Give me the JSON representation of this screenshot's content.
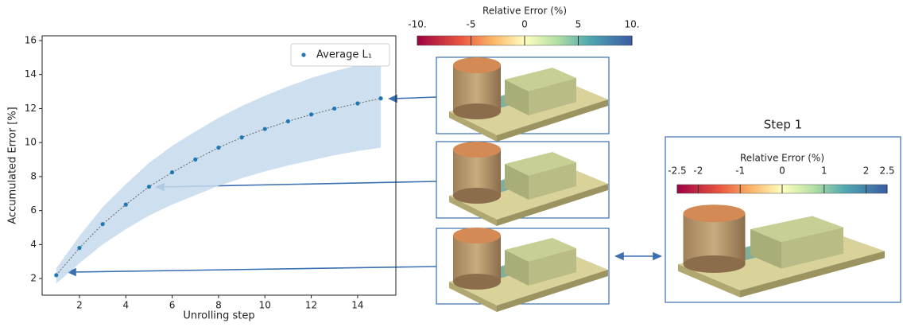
{
  "chart_data": {
    "type": "line",
    "x": [
      1,
      2,
      3,
      4,
      5,
      6,
      7,
      8,
      9,
      10,
      11,
      12,
      13,
      14,
      15
    ],
    "series": [
      {
        "name": "Average L₁",
        "color": "#1f77b4",
        "values": [
          2.2,
          3.8,
          5.2,
          6.35,
          7.4,
          8.25,
          9.0,
          9.7,
          10.3,
          10.8,
          11.25,
          11.65,
          12.0,
          12.3,
          12.6
        ]
      }
    ],
    "band": {
      "color": "#c6dbec",
      "lower": [
        1.7,
        2.9,
        4.0,
        4.9,
        5.7,
        6.35,
        6.9,
        7.45,
        7.9,
        8.3,
        8.65,
        8.95,
        9.25,
        9.5,
        9.7
      ],
      "upper": [
        2.6,
        4.5,
        6.2,
        7.55,
        8.8,
        9.8,
        10.65,
        11.45,
        12.15,
        12.75,
        13.3,
        13.8,
        14.2,
        14.55,
        14.9
      ]
    },
    "xlabel": "Unrolling step",
    "ylabel": "Accumulated Error [%]",
    "xlim": [
      0.39,
      15.65
    ],
    "ylim": [
      1.02,
      16.28
    ],
    "xticks": [
      2,
      4,
      6,
      8,
      10,
      12,
      14
    ],
    "yticks": [
      2,
      4,
      6,
      8,
      10,
      12,
      14,
      16
    ],
    "legend": "upper right"
  },
  "colorbars": [
    {
      "label": "Relative Error (%)",
      "lim": [
        -10,
        10
      ],
      "ticks": [
        {
          "value": -10,
          "label": "-10."
        },
        -5,
        0,
        5,
        {
          "value": 10,
          "label": "10."
        }
      ]
    },
    {
      "title": "Step 1",
      "label": "Relative Error (%)",
      "lim": [
        -2.5,
        2.5
      ],
      "ticks": [
        -2.5,
        -2,
        -1,
        0,
        1,
        2,
        2.5
      ]
    }
  ]
}
